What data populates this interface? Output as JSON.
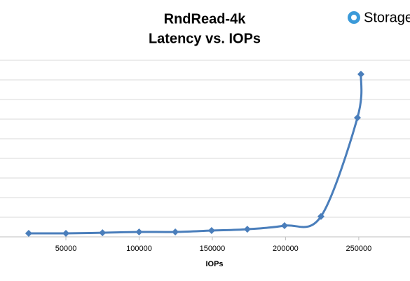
{
  "chart_data": {
    "type": "line",
    "title": "RndRead-4k",
    "subtitle": "Latency vs. IOPs",
    "x_label": "IOPs",
    "x": [
      24600,
      50000,
      75000,
      100000,
      124700,
      149500,
      173900,
      199300,
      224200,
      249100,
      251500
    ],
    "series": [
      {
        "name": "Latency",
        "color": "#4a7ebb",
        "values": [
          0.18,
          0.18,
          0.21,
          0.25,
          0.25,
          0.32,
          0.39,
          0.57,
          1.04,
          6.07,
          8.29
        ]
      }
    ],
    "xlim": [
      5000,
      285000
    ],
    "xticks": [
      50000,
      100000,
      150000,
      200000,
      250000
    ],
    "ylim": [
      0,
      9
    ],
    "grid": true
  },
  "logo": "Storage"
}
